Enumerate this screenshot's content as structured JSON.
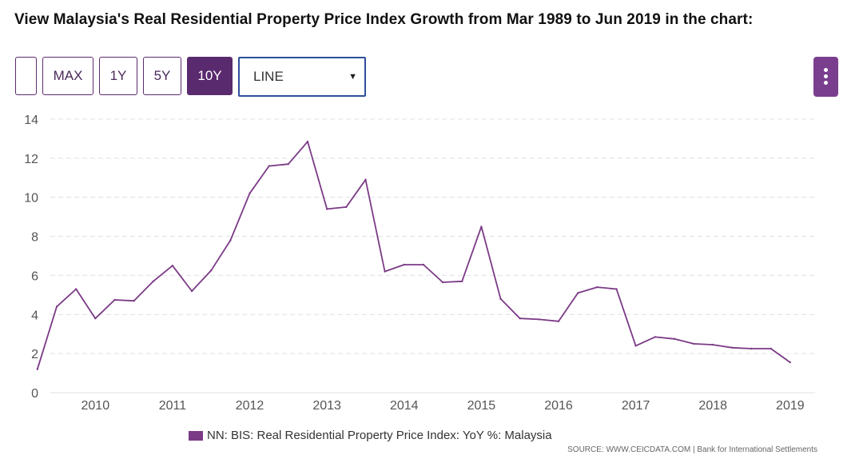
{
  "title": "View Malaysia's Real Residential Property Price Index Growth from Mar 1989 to Jun 2019 in the chart:",
  "toolbar": {
    "blank_label": "",
    "max_label": "MAX",
    "y1_label": "1Y",
    "y5_label": "5Y",
    "y10_label": "10Y",
    "active": "10Y",
    "chart_type_value": "LINE",
    "menu_icon": "kebab-menu-icon"
  },
  "colors": {
    "accent": "#5a2a6e",
    "series_line": "#7b3a86",
    "grid": "#dfdfe8",
    "axis_text": "#555555"
  },
  "legend": {
    "label": "NN: BIS: Real Residential Property Price Index: YoY %: Malaysia"
  },
  "source": "SOURCE: WWW.CEICDATA.COM | Bank for International Settlements",
  "chart_data": {
    "type": "line",
    "title": "",
    "xlabel": "",
    "ylabel": "",
    "ylim": [
      0,
      14
    ],
    "yticks": [
      "0",
      "2",
      "4",
      "6",
      "8",
      "10",
      "12",
      "14"
    ],
    "xticks": [
      "2010",
      "2011",
      "2012",
      "2013",
      "2014",
      "2015",
      "2016",
      "2017",
      "2018",
      "2019"
    ],
    "grid": "horizontal dashed",
    "legend_position": "bottom",
    "series": [
      {
        "name": "NN: BIS: Real Residential Property Price Index: YoY %: Malaysia",
        "points": [
          {
            "x": "2009-06",
            "y": 1.2
          },
          {
            "x": "2009-09",
            "y": 4.4
          },
          {
            "x": "2009-12",
            "y": 5.3
          },
          {
            "x": "2010-03",
            "y": 3.8
          },
          {
            "x": "2010-06",
            "y": 4.75
          },
          {
            "x": "2010-09",
            "y": 4.7
          },
          {
            "x": "2010-12",
            "y": 5.7
          },
          {
            "x": "2011-03",
            "y": 6.5
          },
          {
            "x": "2011-06",
            "y": 5.2
          },
          {
            "x": "2011-09",
            "y": 6.25
          },
          {
            "x": "2011-12",
            "y": 7.8
          },
          {
            "x": "2012-03",
            "y": 10.2
          },
          {
            "x": "2012-06",
            "y": 11.6
          },
          {
            "x": "2012-09",
            "y": 11.7
          },
          {
            "x": "2012-12",
            "y": 12.85
          },
          {
            "x": "2013-03",
            "y": 9.4
          },
          {
            "x": "2013-06",
            "y": 9.5
          },
          {
            "x": "2013-09",
            "y": 10.9
          },
          {
            "x": "2013-12",
            "y": 6.2
          },
          {
            "x": "2014-03",
            "y": 6.55
          },
          {
            "x": "2014-06",
            "y": 6.55
          },
          {
            "x": "2014-09",
            "y": 5.65
          },
          {
            "x": "2014-12",
            "y": 5.7
          },
          {
            "x": "2015-03",
            "y": 8.5
          },
          {
            "x": "2015-06",
            "y": 4.8
          },
          {
            "x": "2015-09",
            "y": 3.8
          },
          {
            "x": "2015-12",
            "y": 3.75
          },
          {
            "x": "2016-03",
            "y": 3.65
          },
          {
            "x": "2016-06",
            "y": 5.1
          },
          {
            "x": "2016-09",
            "y": 5.4
          },
          {
            "x": "2016-12",
            "y": 5.3
          },
          {
            "x": "2017-03",
            "y": 2.4
          },
          {
            "x": "2017-06",
            "y": 2.85
          },
          {
            "x": "2017-09",
            "y": 2.75
          },
          {
            "x": "2017-12",
            "y": 2.5
          },
          {
            "x": "2018-03",
            "y": 2.45
          },
          {
            "x": "2018-06",
            "y": 2.3
          },
          {
            "x": "2018-09",
            "y": 2.25
          },
          {
            "x": "2018-12",
            "y": 2.25
          },
          {
            "x": "2019-03",
            "y": 1.55
          }
        ]
      }
    ]
  }
}
